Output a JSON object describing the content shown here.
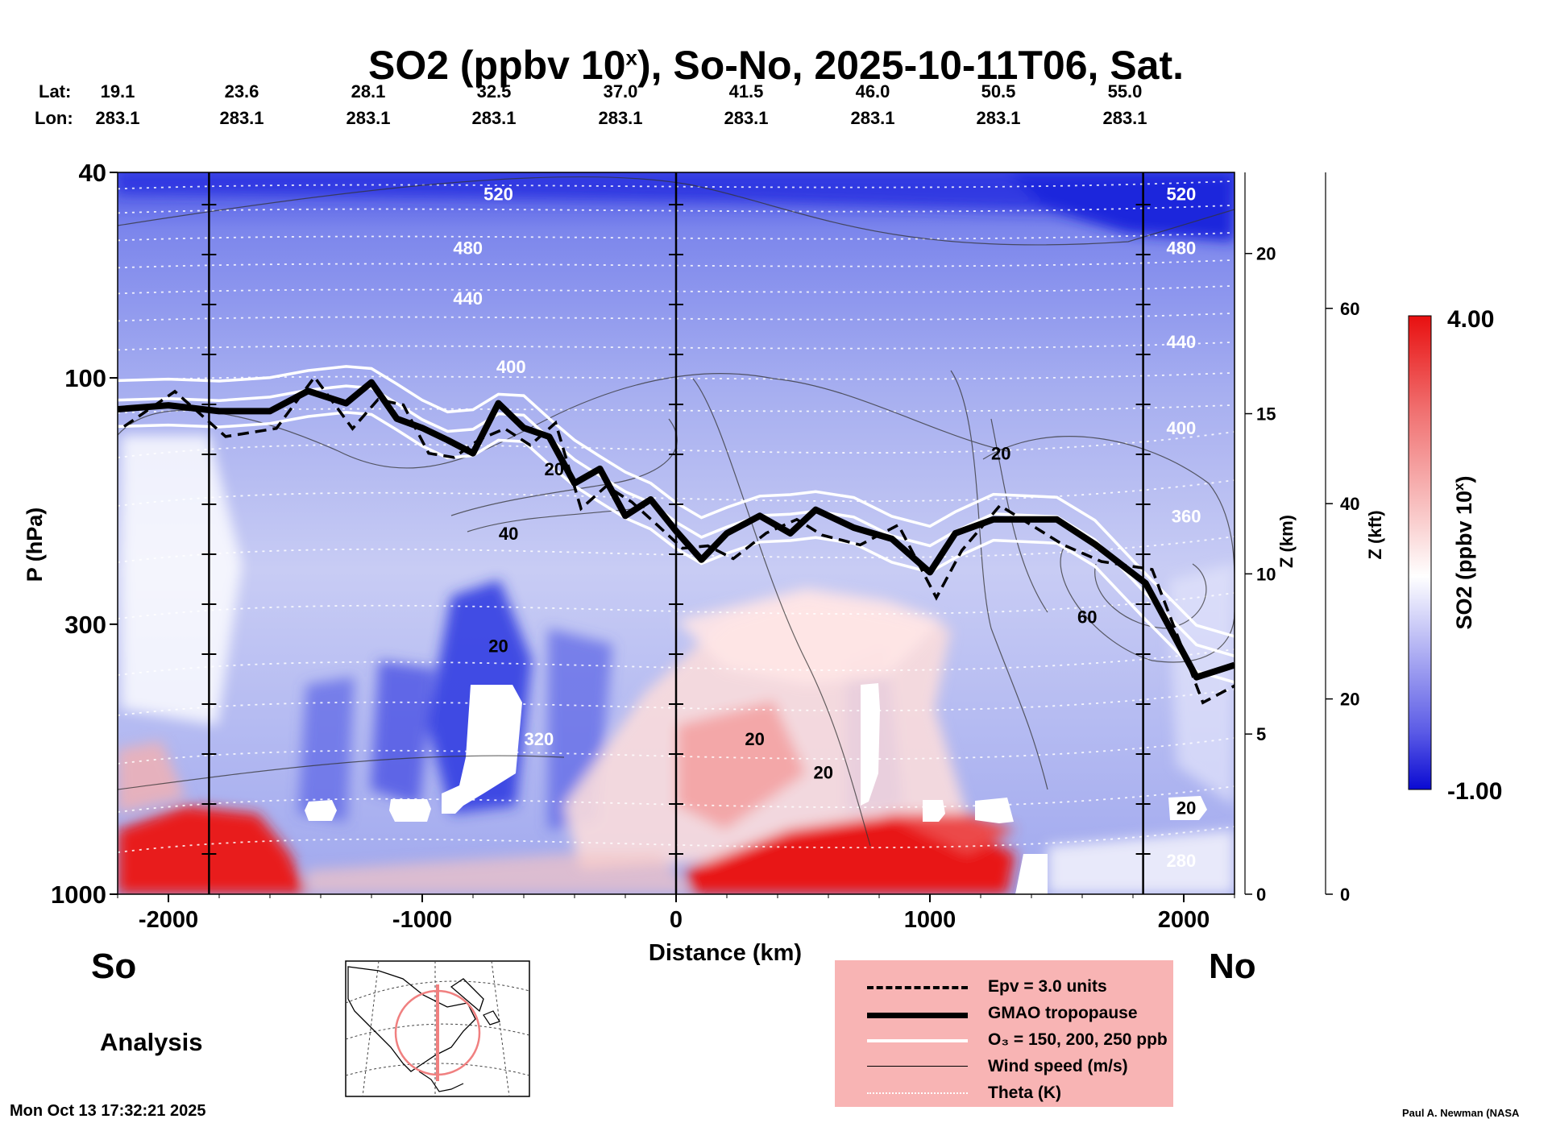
{
  "title": "SO2 (ppbv 10ˣ), So-No, 2025-10-11T06, Sat.",
  "title_parts": {
    "main": "SO2 (ppbv 10",
    "sup": "x",
    "rest": "), So-No, 2025-10-11T06, Sat."
  },
  "header": {
    "lat_label": "Lat:",
    "lon_label": "Lon:",
    "lats": [
      "19.1",
      "23.6",
      "28.1",
      "32.5",
      "37.0",
      "41.5",
      "46.0",
      "50.5",
      "55.0"
    ],
    "lons": [
      "283.1",
      "283.1",
      "283.1",
      "283.1",
      "283.1",
      "283.1",
      "283.1",
      "283.1",
      "283.1"
    ]
  },
  "labels": {
    "south": "So",
    "north": "No",
    "analysis": "Analysis",
    "timestamp": "Mon Oct 13 17:32:21 2025",
    "credit": "Paul A. Newman (NASA"
  },
  "colorbar": {
    "max_label": "4.00",
    "min_label": "-1.00",
    "title": "SO2 (ppbv 10ˣ)",
    "title_main": "SO2 (ppbv 10",
    "title_sup": "x",
    "title_rest": ")",
    "colors": [
      "#0a0ad2",
      "#5a5ae6",
      "#aaaaf2",
      "#ffffff",
      "#f8c0c0",
      "#f07070",
      "#e81010"
    ]
  },
  "legend": {
    "items": [
      {
        "label": "Epv = 3.0 units",
        "style": "dashed-black"
      },
      {
        "label": "GMAO tropopause",
        "style": "thick-black"
      },
      {
        "label": "O₃ = 150, 200, 250 ppb",
        "style": "white"
      },
      {
        "label": "Wind speed (m/s)",
        "style": "thin-black"
      },
      {
        "label": "Theta (K)",
        "style": "dotted-white"
      }
    ]
  },
  "colors": {
    "background_blue": "#aab2ee",
    "deep_blue": "#1e28dc",
    "red": "#e82020",
    "legend_bg": "#f8b4b4"
  },
  "chart_data": {
    "type": "heatmap",
    "title": "SO2 (ppbv 10ˣ), So-No, 2025-10-11T06, Sat.",
    "xlabel": "Distance (km)",
    "ylabel": "P (hPa)",
    "y2label": "Z (km)",
    "y3label": "Z (kft)",
    "xlim": [
      -2200,
      2200
    ],
    "ylim": [
      1000,
      40
    ],
    "y_scale": "log",
    "x_ticks": [
      -2000,
      -1000,
      0,
      1000,
      2000
    ],
    "x_ticklabels": [
      "-2000",
      "-1000",
      "0",
      "1000",
      "2000"
    ],
    "y_ticks": [
      40,
      100,
      300,
      1000
    ],
    "y_ticklabels": [
      "40",
      "100",
      "300",
      "1000"
    ],
    "z_km_ticks": [
      0,
      5,
      10,
      15,
      20
    ],
    "z_kft_ticks": [
      0,
      20,
      40,
      60
    ],
    "vertical_lines_km": [
      -1840,
      0,
      1840
    ],
    "colorbar_range": [
      -1.0,
      4.0
    ],
    "theta_labels": [
      {
        "text": "520",
        "x": -700,
        "p": 44
      },
      {
        "text": "480",
        "x": -820,
        "p": 56
      },
      {
        "text": "440",
        "x": -820,
        "p": 70
      },
      {
        "text": "400",
        "x": -650,
        "p": 95
      },
      {
        "text": "520",
        "x": 1990,
        "p": 44
      },
      {
        "text": "480",
        "x": 1990,
        "p": 56
      },
      {
        "text": "440",
        "x": 1990,
        "p": 85
      },
      {
        "text": "400",
        "x": 1990,
        "p": 125
      },
      {
        "text": "360",
        "x": 2010,
        "p": 185
      },
      {
        "text": "320",
        "x": -540,
        "p": 500
      },
      {
        "text": "280",
        "x": 1990,
        "p": 860
      }
    ],
    "wind_labels": [
      {
        "text": "20",
        "x": -480,
        "p": 150
      },
      {
        "text": "40",
        "x": -660,
        "p": 200
      },
      {
        "text": "20",
        "x": -700,
        "p": 330
      },
      {
        "text": "20",
        "x": 310,
        "p": 500
      },
      {
        "text": "20",
        "x": 580,
        "p": 580
      },
      {
        "text": "20",
        "x": 1280,
        "p": 140
      },
      {
        "text": "60",
        "x": 1620,
        "p": 290
      },
      {
        "text": "20",
        "x": 2010,
        "p": 680
      }
    ],
    "tropopause_hpa": [
      {
        "x": -2200,
        "p": 115
      },
      {
        "x": -2000,
        "p": 113
      },
      {
        "x": -1800,
        "p": 116
      },
      {
        "x": -1600,
        "p": 116
      },
      {
        "x": -1450,
        "p": 106
      },
      {
        "x": -1300,
        "p": 112
      },
      {
        "x": -1200,
        "p": 102
      },
      {
        "x": -1100,
        "p": 120
      },
      {
        "x": -1000,
        "p": 125
      },
      {
        "x": -900,
        "p": 132
      },
      {
        "x": -800,
        "p": 140
      },
      {
        "x": -700,
        "p": 112
      },
      {
        "x": -600,
        "p": 125
      },
      {
        "x": -500,
        "p": 130
      },
      {
        "x": -400,
        "p": 160
      },
      {
        "x": -300,
        "p": 150
      },
      {
        "x": -200,
        "p": 185
      },
      {
        "x": -100,
        "p": 172
      },
      {
        "x": 0,
        "p": 198
      },
      {
        "x": 100,
        "p": 225
      },
      {
        "x": 200,
        "p": 200
      },
      {
        "x": 330,
        "p": 185
      },
      {
        "x": 450,
        "p": 200
      },
      {
        "x": 550,
        "p": 180
      },
      {
        "x": 700,
        "p": 195
      },
      {
        "x": 850,
        "p": 205
      },
      {
        "x": 1000,
        "p": 238
      },
      {
        "x": 1100,
        "p": 200
      },
      {
        "x": 1250,
        "p": 188
      },
      {
        "x": 1500,
        "p": 188
      },
      {
        "x": 1650,
        "p": 210
      },
      {
        "x": 1850,
        "p": 250
      },
      {
        "x": 2050,
        "p": 380
      },
      {
        "x": 2200,
        "p": 360
      }
    ]
  }
}
